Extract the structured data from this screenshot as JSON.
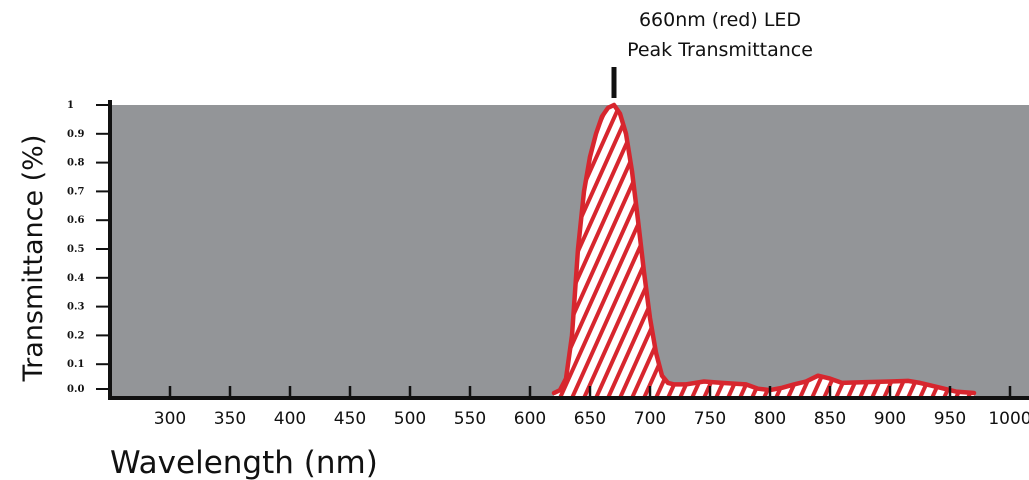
{
  "chart_data": {
    "type": "area",
    "xlabel": "Wavelength (nm)",
    "ylabel": "Transmittance (%)",
    "xlim": [
      250,
      1010
    ],
    "ylim": [
      0,
      1
    ],
    "x_ticks": [
      300,
      350,
      400,
      450,
      500,
      550,
      600,
      650,
      700,
      750,
      800,
      850,
      900,
      950,
      1000
    ],
    "y_ticks": [
      {
        "value": 0.0,
        "label": "0.0"
      },
      {
        "value": 0.1,
        "label": "0.1"
      },
      {
        "value": 0.2,
        "label": "0.2"
      },
      {
        "value": 0.3,
        "label": "0.3"
      },
      {
        "value": 0.4,
        "label": "0.4"
      },
      {
        "value": 0.5,
        "label": "0.5"
      },
      {
        "value": 0.6,
        "label": "0.6"
      },
      {
        "value": 0.7,
        "label": "0.7"
      },
      {
        "value": 0.8,
        "label": "0.8"
      },
      {
        "value": 0.9,
        "label": "0.9"
      },
      {
        "value": 1.0,
        "label": "1"
      }
    ],
    "series": [
      {
        "color": "#d7262e",
        "fill": "hatched",
        "points": [
          [
            620,
            0.0
          ],
          [
            625,
            0.01
          ],
          [
            630,
            0.05
          ],
          [
            635,
            0.2
          ],
          [
            640,
            0.5
          ],
          [
            645,
            0.7
          ],
          [
            650,
            0.82
          ],
          [
            655,
            0.9
          ],
          [
            660,
            0.96
          ],
          [
            665,
            0.99
          ],
          [
            670,
            1.0
          ],
          [
            675,
            0.97
          ],
          [
            680,
            0.9
          ],
          [
            685,
            0.77
          ],
          [
            690,
            0.6
          ],
          [
            695,
            0.42
          ],
          [
            700,
            0.26
          ],
          [
            705,
            0.14
          ],
          [
            710,
            0.06
          ],
          [
            715,
            0.035
          ],
          [
            720,
            0.03
          ],
          [
            730,
            0.03
          ],
          [
            745,
            0.04
          ],
          [
            760,
            0.035
          ],
          [
            780,
            0.03
          ],
          [
            790,
            0.015
          ],
          [
            800,
            0.01
          ],
          [
            810,
            0.018
          ],
          [
            820,
            0.03
          ],
          [
            830,
            0.04
          ],
          [
            840,
            0.06
          ],
          [
            850,
            0.05
          ],
          [
            860,
            0.035
          ],
          [
            880,
            0.038
          ],
          [
            900,
            0.04
          ],
          [
            915,
            0.042
          ],
          [
            925,
            0.035
          ],
          [
            940,
            0.02
          ],
          [
            955,
            0.005
          ],
          [
            970,
            0.0
          ]
        ]
      }
    ],
    "annotation": {
      "x": 670,
      "lines": [
        "660nm (red) LED",
        "Peak Transmittance"
      ]
    },
    "plot_background": "#939598",
    "grid": false
  }
}
